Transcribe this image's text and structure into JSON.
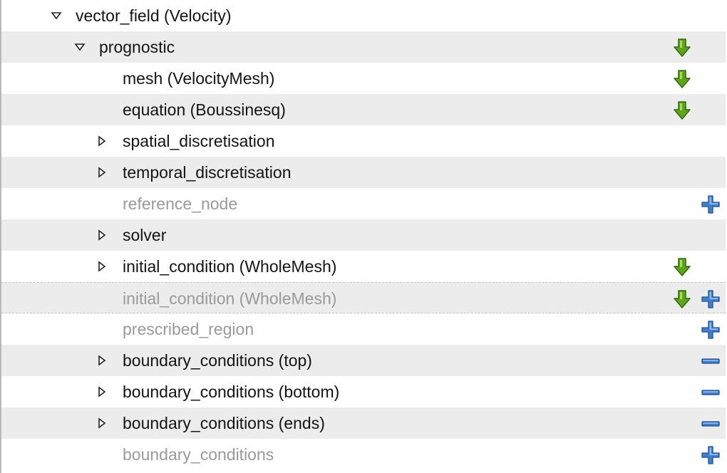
{
  "tree": {
    "rows": [
      {
        "label": "vector_field (Velocity)",
        "level": 0,
        "expander": "down",
        "active": true,
        "actions": []
      },
      {
        "label": "prognostic",
        "level": 1,
        "expander": "down",
        "active": true,
        "actions": [
          "goto"
        ]
      },
      {
        "label": "mesh (VelocityMesh)",
        "level": 2,
        "expander": "none",
        "active": true,
        "actions": [
          "goto"
        ]
      },
      {
        "label": "equation (Boussinesq)",
        "level": 2,
        "expander": "none",
        "active": true,
        "actions": [
          "goto"
        ]
      },
      {
        "label": "spatial_discretisation",
        "level": 2,
        "expander": "right",
        "active": true,
        "actions": []
      },
      {
        "label": "temporal_discretisation",
        "level": 2,
        "expander": "right",
        "active": true,
        "actions": []
      },
      {
        "label": "reference_node",
        "level": 2,
        "expander": "none",
        "active": false,
        "actions": [
          "add"
        ]
      },
      {
        "label": "solver",
        "level": 2,
        "expander": "right",
        "active": true,
        "actions": []
      },
      {
        "label": "initial_condition (WholeMesh)",
        "level": 2,
        "expander": "right",
        "active": true,
        "actions": [
          "goto"
        ]
      },
      {
        "label": "initial_condition (WholeMesh)",
        "level": 2,
        "expander": "none",
        "active": false,
        "actions": [
          "goto",
          "add"
        ]
      },
      {
        "label": "prescribed_region",
        "level": 2,
        "expander": "none",
        "active": false,
        "actions": [
          "add"
        ]
      },
      {
        "label": "boundary_conditions (top)",
        "level": 2,
        "expander": "right",
        "active": true,
        "actions": [
          "remove"
        ]
      },
      {
        "label": "boundary_conditions (bottom)",
        "level": 2,
        "expander": "right",
        "active": true,
        "actions": [
          "remove"
        ]
      },
      {
        "label": "boundary_conditions (ends)",
        "level": 2,
        "expander": "right",
        "active": true,
        "actions": [
          "remove"
        ]
      },
      {
        "label": "boundary_conditions",
        "level": 2,
        "expander": "none",
        "active": false,
        "actions": [
          "add"
        ]
      }
    ]
  },
  "colors": {
    "row_alt": "#ececec",
    "text_active": "#141414",
    "text_inactive": "#9a9a9a",
    "goto_green": "#5fa51c",
    "action_blue": "#3f7fd0"
  }
}
